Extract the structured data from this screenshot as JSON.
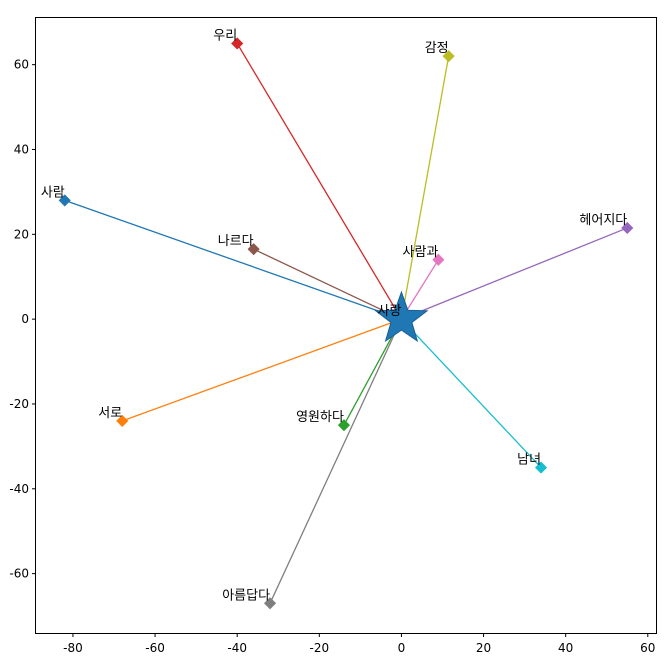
{
  "chart_data": {
    "type": "scatter",
    "title": "",
    "xlabel": "",
    "ylabel": "",
    "xlim": [
      -89,
      62
    ],
    "ylim": [
      -74,
      71
    ],
    "grid": false,
    "xticks": [
      "-80",
      "-60",
      "-40",
      "-20",
      "0",
      "20",
      "40",
      "60"
    ],
    "yticks": [
      "-60",
      "-40",
      "-20",
      "0",
      "20",
      "40",
      "60"
    ],
    "center": {
      "label": "사랑",
      "x": 0,
      "y": 0,
      "marker": "star",
      "color": "#1f77b4"
    },
    "points": [
      {
        "label": "사람",
        "x": -82,
        "y": 28,
        "color": "#1f77b4"
      },
      {
        "label": "서로",
        "x": -68,
        "y": -24,
        "color": "#ff7f0e"
      },
      {
        "label": "영원하다",
        "x": -14,
        "y": -25,
        "color": "#2ca02c"
      },
      {
        "label": "우리",
        "x": -40,
        "y": 65,
        "color": "#d62728"
      },
      {
        "label": "헤어지다",
        "x": 55,
        "y": 21.5,
        "color": "#9467bd"
      },
      {
        "label": "나르다",
        "x": -36,
        "y": 16.5,
        "color": "#8c564b"
      },
      {
        "label": "사람과",
        "x": 9,
        "y": 14,
        "color": "#e377c2"
      },
      {
        "label": "아름답다",
        "x": -32,
        "y": -67,
        "color": "#7f7f7f"
      },
      {
        "label": "감정",
        "x": 11.5,
        "y": 62,
        "color": "#bcbd22"
      },
      {
        "label": "남녀",
        "x": 34,
        "y": -35,
        "color": "#17becf"
      }
    ]
  }
}
